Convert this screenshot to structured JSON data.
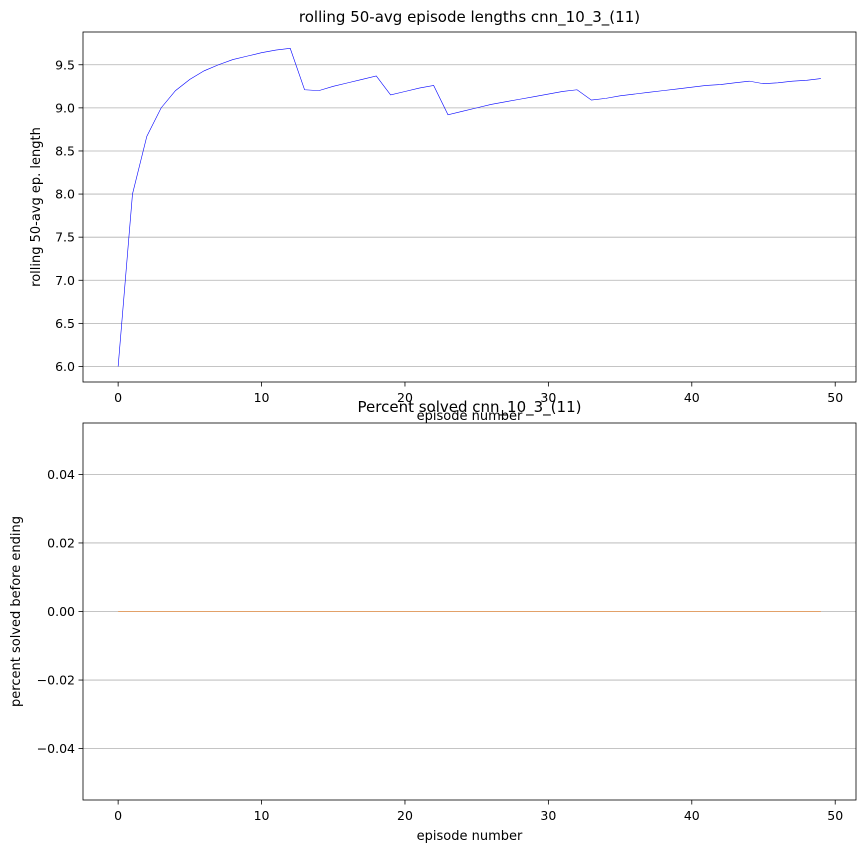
{
  "chart_data": [
    {
      "type": "line",
      "title": "rolling 50-avg episode lengths cnn_10_3_(11)",
      "xlabel": "episode number",
      "ylabel": "rolling 50-avg ep. length",
      "xlim": [
        -2.45,
        51.45
      ],
      "ylim": [
        5.82,
        9.88
      ],
      "xticks": [
        "0",
        "10",
        "20",
        "30",
        "40",
        "50"
      ],
      "yticks": [
        "6.0",
        "6.5",
        "7.0",
        "7.5",
        "8.0",
        "8.5",
        "9.0",
        "9.5"
      ],
      "grid": "y",
      "series": [
        {
          "color": "#0000ff",
          "x": [
            0,
            1,
            2,
            3,
            4,
            5,
            6,
            7,
            8,
            9,
            10,
            11,
            12,
            13,
            14,
            15,
            16,
            17,
            18,
            19,
            20,
            21,
            22,
            23,
            24,
            25,
            26,
            27,
            28,
            29,
            30,
            31,
            32,
            33,
            34,
            35,
            36,
            37,
            38,
            39,
            40,
            41,
            42,
            43,
            44,
            45,
            46,
            47,
            48,
            49
          ],
          "y": [
            6.0,
            8.0,
            8.67,
            9.0,
            9.2,
            9.33,
            9.43,
            9.5,
            9.56,
            9.6,
            9.64,
            9.67,
            9.69,
            9.21,
            9.2,
            9.25,
            9.29,
            9.33,
            9.37,
            9.15,
            9.19,
            9.23,
            9.26,
            8.92,
            8.96,
            9.0,
            9.04,
            9.07,
            9.1,
            9.13,
            9.16,
            9.19,
            9.21,
            9.09,
            9.11,
            9.14,
            9.16,
            9.18,
            9.2,
            9.22,
            9.24,
            9.26,
            9.27,
            9.29,
            9.31,
            9.28,
            9.29,
            9.31,
            9.32,
            9.34
          ]
        }
      ]
    },
    {
      "type": "line",
      "title": "Percent solved cnn_10_3_(11)",
      "xlabel": "episode number",
      "ylabel": "percent solved before ending",
      "xlim": [
        -2.45,
        51.45
      ],
      "ylim": [
        -0.055,
        0.055
      ],
      "xticks": [
        "0",
        "10",
        "20",
        "30",
        "40",
        "50"
      ],
      "yticks": [
        "−0.04",
        "−0.02",
        "0.00",
        "0.02",
        "0.04"
      ],
      "grid": "y",
      "series": [
        {
          "color": "#ff7f0e",
          "x": [
            0,
            49
          ],
          "y": [
            0.0,
            0.0
          ]
        }
      ]
    }
  ]
}
